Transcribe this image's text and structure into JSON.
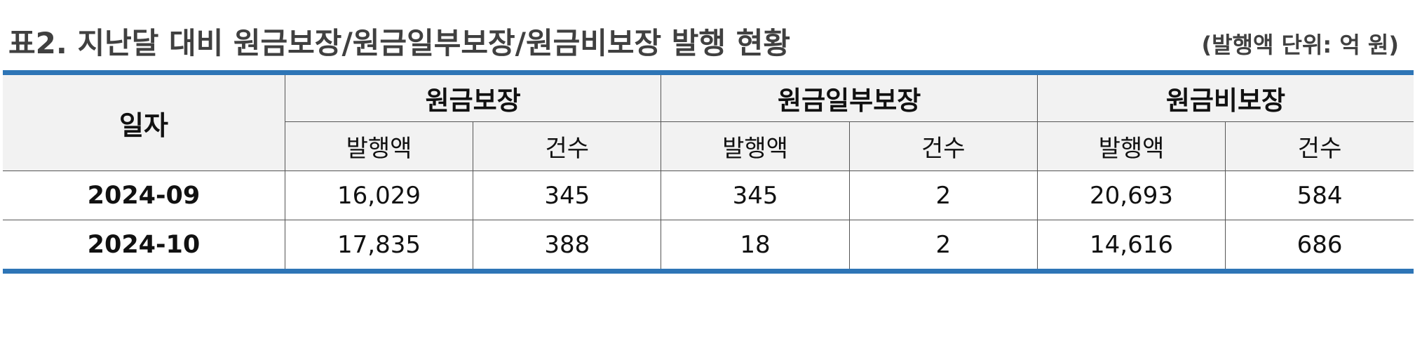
{
  "title": "표2. 지난달 대비 원금보장/원금일부보장/원금비보장 발행 현황",
  "unit_note": "(발행액 단위: 억 원)",
  "table": {
    "date_header": "일자",
    "groups": [
      "원금보장",
      "원금일부보장",
      "원금비보장"
    ],
    "sub_headers": [
      "발행액",
      "건수",
      "발행액",
      "건수",
      "발행액",
      "건수"
    ],
    "rows": [
      {
        "date": "2024-09",
        "values": [
          "16,029",
          "345",
          "345",
          "2",
          "20,693",
          "584"
        ]
      },
      {
        "date": "2024-10",
        "values": [
          "17,835",
          "388",
          "18",
          "2",
          "14,616",
          "686"
        ]
      }
    ]
  },
  "colors": {
    "accent_border": "#2e75b6",
    "header_bg": "#f2f2f2",
    "title_text": "#404040"
  }
}
